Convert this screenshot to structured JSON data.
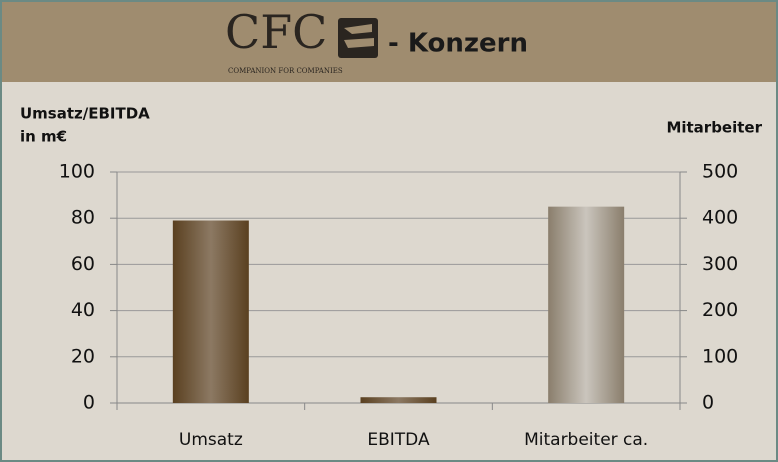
{
  "header": {
    "logo": "CFC",
    "tagline": "COMPANION FOR COMPANIES",
    "title": "- Konzern"
  },
  "chart_data": {
    "type": "bar",
    "ylabel": [
      "Umsatz/EBITDA",
      "in m€"
    ],
    "y2label": "Mitarbeiter",
    "categories": [
      "Umsatz",
      "EBITDA",
      "Mitarbeiter ca."
    ],
    "series": [
      {
        "color": "#5a4020",
        "values": [
          79,
          2.5,
          null
        ]
      },
      {
        "color": "#8a7e6c",
        "axis": "y2",
        "values": [
          null,
          null,
          425
        ]
      }
    ],
    "ylim": [
      0,
      100
    ],
    "yticks": [
      0,
      20,
      40,
      60,
      80,
      100
    ],
    "y2lim": [
      0,
      500
    ],
    "y2ticks": [
      0,
      100,
      200,
      300,
      400,
      500
    ],
    "grid": true
  }
}
